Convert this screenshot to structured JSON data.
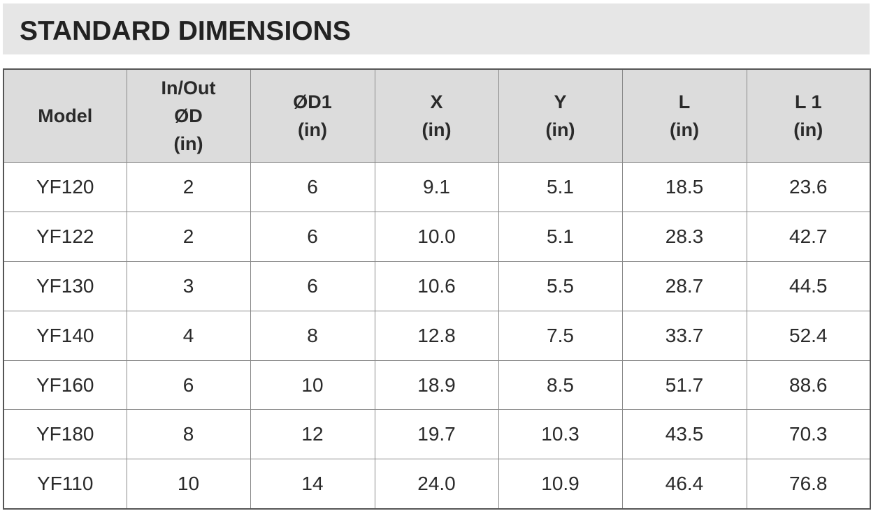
{
  "header": {
    "title": "STANDARD DIMENSIONS"
  },
  "table": {
    "headers": [
      [
        "Model"
      ],
      [
        "In/Out",
        "ØD",
        "(in)"
      ],
      [
        "ØD1",
        "(in)"
      ],
      [
        "X",
        "(in)"
      ],
      [
        "Y",
        "(in)"
      ],
      [
        "L",
        "(in)"
      ],
      [
        "L 1",
        "(in)"
      ]
    ],
    "rows": [
      [
        "YF120",
        "2",
        "6",
        "9.1",
        "5.1",
        "18.5",
        "23.6"
      ],
      [
        "YF122",
        "2",
        "6",
        "10.0",
        "5.1",
        "28.3",
        "42.7"
      ],
      [
        "YF130",
        "3",
        "6",
        "10.6",
        "5.5",
        "28.7",
        "44.5"
      ],
      [
        "YF140",
        "4",
        "8",
        "12.8",
        "7.5",
        "33.7",
        "52.4"
      ],
      [
        "YF160",
        "6",
        "10",
        "18.9",
        "8.5",
        "51.7",
        "88.6"
      ],
      [
        "YF180",
        "8",
        "12",
        "19.7",
        "10.3",
        "43.5",
        "70.3"
      ],
      [
        "YF110",
        "10",
        "14",
        "24.0",
        "10.9",
        "46.4",
        "76.8"
      ]
    ]
  }
}
